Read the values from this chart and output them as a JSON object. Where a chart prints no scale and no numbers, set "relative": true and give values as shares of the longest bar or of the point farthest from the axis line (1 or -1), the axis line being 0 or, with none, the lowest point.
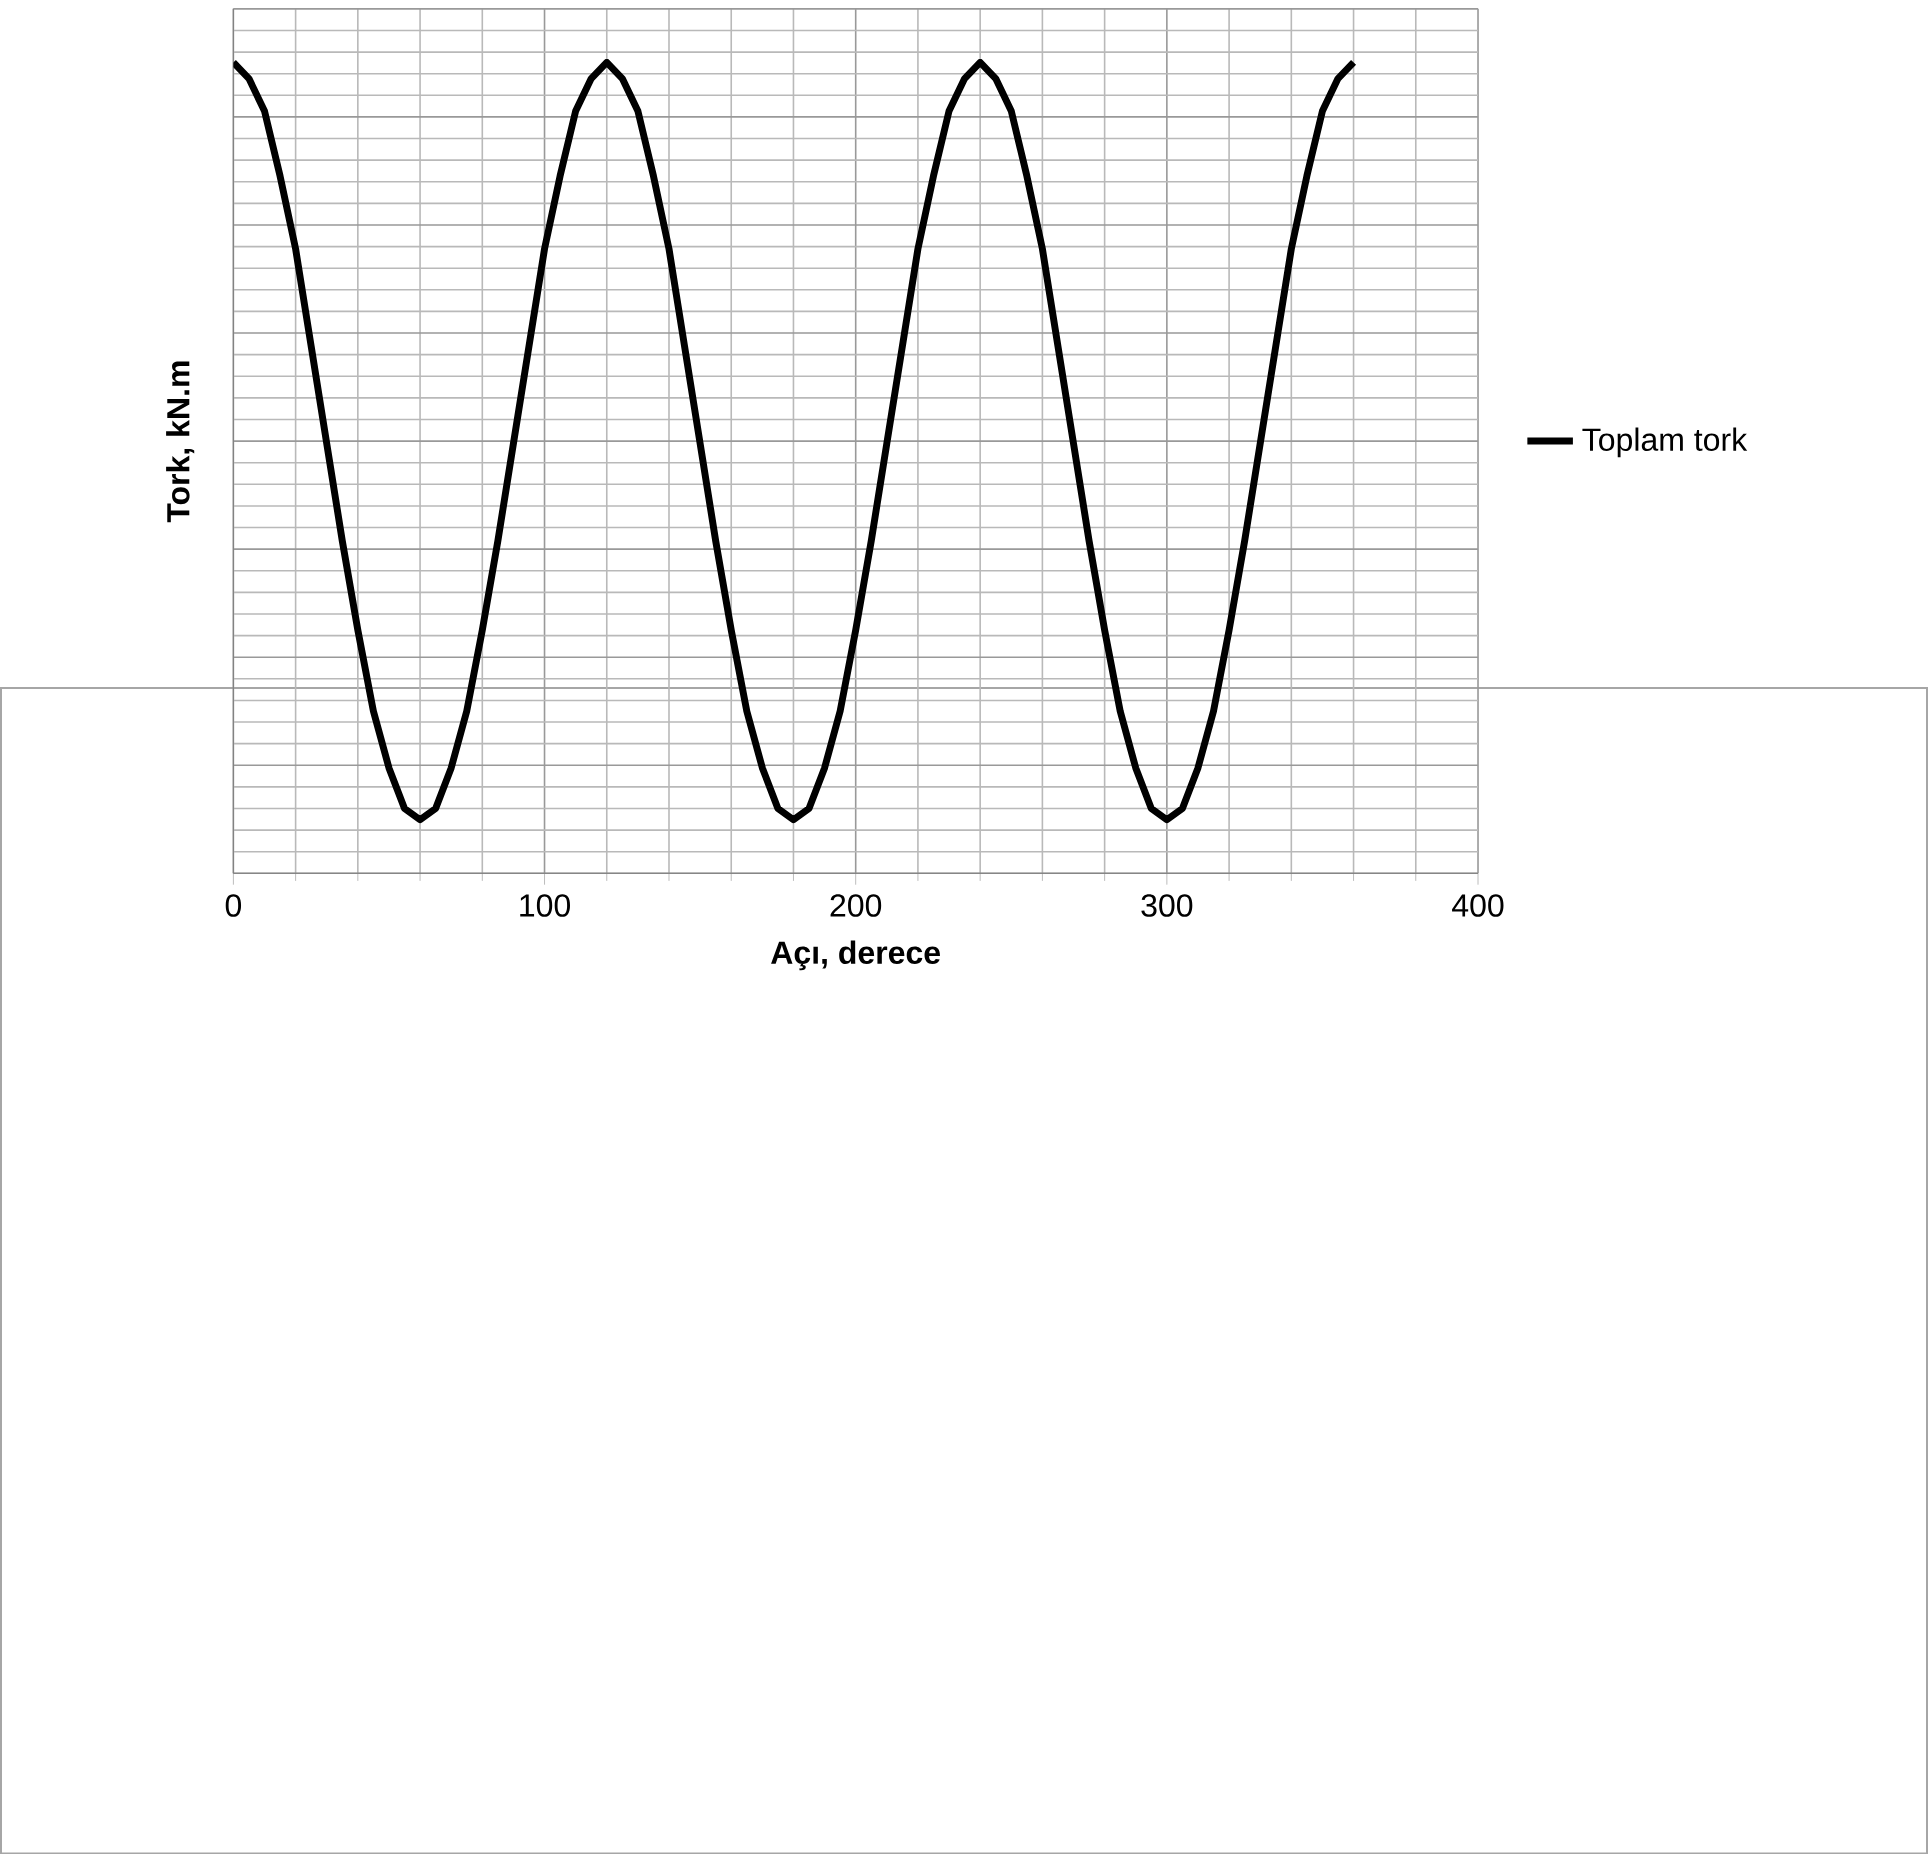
{
  "chart_data": {
    "type": "line",
    "relative": true,
    "xlabel": "Açı, derece",
    "ylabel": "Tork, kN.m",
    "xlim": [
      0,
      400
    ],
    "xticks": [
      0,
      100,
      200,
      300,
      400
    ],
    "grid": true,
    "legend": "right",
    "marker": "none",
    "line_style": "solid",
    "x": [
      0,
      5,
      10,
      15,
      20,
      25,
      30,
      35,
      40,
      45,
      50,
      55,
      60,
      65,
      70,
      75,
      80,
      85,
      90,
      95,
      100,
      105,
      110,
      115,
      120,
      125,
      130,
      135,
      140,
      145,
      150,
      155,
      160,
      165,
      170,
      175,
      180,
      185,
      190,
      195,
      200,
      205,
      210,
      215,
      220,
      225,
      230,
      235,
      240,
      245,
      250,
      255,
      260,
      265,
      270,
      275,
      280,
      285,
      290,
      295,
      300,
      305,
      310,
      315,
      320,
      325,
      330,
      335,
      340,
      345,
      350,
      355,
      360
    ],
    "series": [
      {
        "name": "Toplam tork",
        "color": "#000000",
        "values": [
          1.0,
          0.98,
          0.94,
          0.86,
          0.77,
          0.65,
          0.53,
          0.41,
          0.3,
          0.2,
          0.13,
          0.08,
          0.066,
          0.08,
          0.13,
          0.2,
          0.3,
          0.41,
          0.53,
          0.65,
          0.77,
          0.86,
          0.94,
          0.98,
          1.0,
          0.98,
          0.94,
          0.86,
          0.77,
          0.65,
          0.53,
          0.41,
          0.3,
          0.2,
          0.13,
          0.08,
          0.066,
          0.08,
          0.13,
          0.2,
          0.3,
          0.41,
          0.53,
          0.65,
          0.77,
          0.86,
          0.94,
          0.98,
          1.0,
          0.98,
          0.94,
          0.86,
          0.77,
          0.65,
          0.53,
          0.41,
          0.3,
          0.2,
          0.13,
          0.08,
          0.066,
          0.08,
          0.13,
          0.2,
          0.3,
          0.41,
          0.53,
          0.65,
          0.77,
          0.86,
          0.94,
          0.98,
          1.0
        ]
      }
    ]
  }
}
